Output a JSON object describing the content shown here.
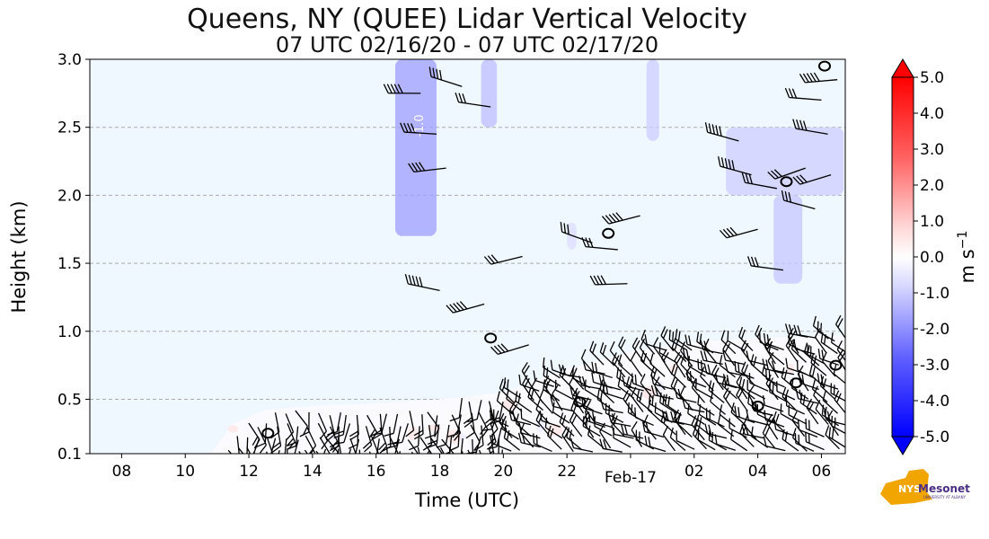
{
  "chart_data": {
    "type": "heatmap",
    "title": "Queens, NY (QUEE) Lidar Vertical Velocity",
    "subtitle": "07 UTC 02/16/20 - 07 UTC 02/17/20",
    "xlabel": "Time (UTC)",
    "ylabel": "Height (km)",
    "xlim_hours": [
      7.0,
      30.75
    ],
    "ylim": [
      0.1,
      3.0
    ],
    "x_ticks": [
      {
        "hour": 8,
        "label": "08"
      },
      {
        "hour": 10,
        "label": "10"
      },
      {
        "hour": 12,
        "label": "12"
      },
      {
        "hour": 14,
        "label": "14"
      },
      {
        "hour": 16,
        "label": "16"
      },
      {
        "hour": 18,
        "label": "18"
      },
      {
        "hour": 20,
        "label": "20"
      },
      {
        "hour": 22,
        "label": "22"
      },
      {
        "hour": 26,
        "label": "02"
      },
      {
        "hour": 28,
        "label": "04"
      },
      {
        "hour": 30,
        "label": "06"
      }
    ],
    "x_date_label": {
      "hour": 24,
      "label": "Feb-17"
    },
    "y_ticks": [
      {
        "value": 0.1,
        "label": "0.1"
      },
      {
        "value": 0.5,
        "label": "0.5"
      },
      {
        "value": 1.0,
        "label": "1.0"
      },
      {
        "value": 1.5,
        "label": "1.5"
      },
      {
        "value": 2.0,
        "label": "2.0"
      },
      {
        "value": 2.5,
        "label": "2.5"
      },
      {
        "value": 3.0,
        "label": "3.0"
      }
    ],
    "grid": "horizontal dashed",
    "colorbar": {
      "label": "m s",
      "label_sup": "−1",
      "min": -5.0,
      "max": 5.0,
      "ticks": [
        "5.0",
        "4.0",
        "3.0",
        "2.0",
        "1.0",
        "0.0",
        "-1.0",
        "-2.0",
        "-3.0",
        "-4.0",
        "-5.0"
      ],
      "low_color": "#0000ff",
      "high_color": "#ff0000",
      "mid_color": "#ffffff"
    },
    "contour_annotation": "-1.0",
    "low_velocity_regions": [
      {
        "t0": 16.6,
        "t1": 17.9,
        "h0": 1.7,
        "h1": 3.0,
        "value": -1.2
      },
      {
        "t0": 19.3,
        "t1": 19.8,
        "h0": 2.5,
        "h1": 3.0,
        "value": -0.8
      },
      {
        "t0": 24.5,
        "t1": 24.9,
        "h0": 2.4,
        "h1": 3.0,
        "value": -0.6
      },
      {
        "t0": 27.0,
        "t1": 30.7,
        "h0": 2.0,
        "h1": 2.5,
        "value": -0.6
      },
      {
        "t0": 28.5,
        "t1": 29.4,
        "h0": 1.35,
        "h1": 2.0,
        "value": -0.7
      },
      {
        "t0": 22.0,
        "t1": 22.3,
        "h0": 1.6,
        "h1": 1.8,
        "value": -0.4
      }
    ],
    "boundary_layer_top": [
      {
        "hour": 10.8,
        "km": 0.1
      },
      {
        "hour": 11.5,
        "km": 0.32
      },
      {
        "hour": 12.5,
        "km": 0.42
      },
      {
        "hour": 14.0,
        "km": 0.45
      },
      {
        "hour": 16.0,
        "km": 0.47
      },
      {
        "hour": 18.0,
        "km": 0.5
      },
      {
        "hour": 20.0,
        "km": 0.55
      },
      {
        "hour": 22.0,
        "km": 0.72
      },
      {
        "hour": 24.0,
        "km": 0.85
      },
      {
        "hour": 26.0,
        "km": 0.92
      },
      {
        "hour": 28.0,
        "km": 0.95
      },
      {
        "hour": 30.75,
        "km": 0.97
      }
    ],
    "wind_barbs_aloft": [
      {
        "hour": 17.4,
        "km": 2.75
      },
      {
        "hour": 18.7,
        "km": 2.8
      },
      {
        "hour": 19.6,
        "km": 2.65
      },
      {
        "hour": 17.9,
        "km": 2.45
      },
      {
        "hour": 18.2,
        "km": 2.2
      },
      {
        "hour": 18.0,
        "km": 1.3
      },
      {
        "hour": 19.4,
        "km": 1.2
      },
      {
        "hour": 20.8,
        "km": 0.9
      },
      {
        "hour": 20.6,
        "km": 1.55
      },
      {
        "hour": 22.8,
        "km": 1.65
      },
      {
        "hour": 23.6,
        "km": 1.6
      },
      {
        "hour": 23.9,
        "km": 1.35
      },
      {
        "hour": 24.3,
        "km": 1.85
      },
      {
        "hour": 27.4,
        "km": 2.4
      },
      {
        "hour": 27.8,
        "km": 2.15
      },
      {
        "hour": 28.6,
        "km": 2.05
      },
      {
        "hour": 29.5,
        "km": 2.2
      },
      {
        "hour": 30.3,
        "km": 2.15
      },
      {
        "hour": 30.0,
        "km": 2.7
      },
      {
        "hour": 30.2,
        "km": 2.45
      },
      {
        "hour": 28.8,
        "km": 1.45
      },
      {
        "hour": 29.8,
        "km": 1.9
      },
      {
        "hour": 30.5,
        "km": 2.85
      },
      {
        "hour": 28.0,
        "km": 1.75
      }
    ],
    "closed_contours": [
      {
        "hour": 12.6,
        "km": 0.25
      },
      {
        "hour": 19.6,
        "km": 0.95
      },
      {
        "hour": 22.4,
        "km": 0.48
      },
      {
        "hour": 23.3,
        "km": 1.72
      },
      {
        "hour": 28.0,
        "km": 0.45
      },
      {
        "hour": 30.45,
        "km": 0.75
      },
      {
        "hour": 29.2,
        "km": 0.62
      },
      {
        "hour": 28.9,
        "km": 2.1
      },
      {
        "hour": 30.1,
        "km": 2.95
      }
    ],
    "logo": {
      "main": "NYS",
      "secondary": "Mesonet",
      "tagline": "UNIVERSITY AT ALBANY"
    }
  }
}
